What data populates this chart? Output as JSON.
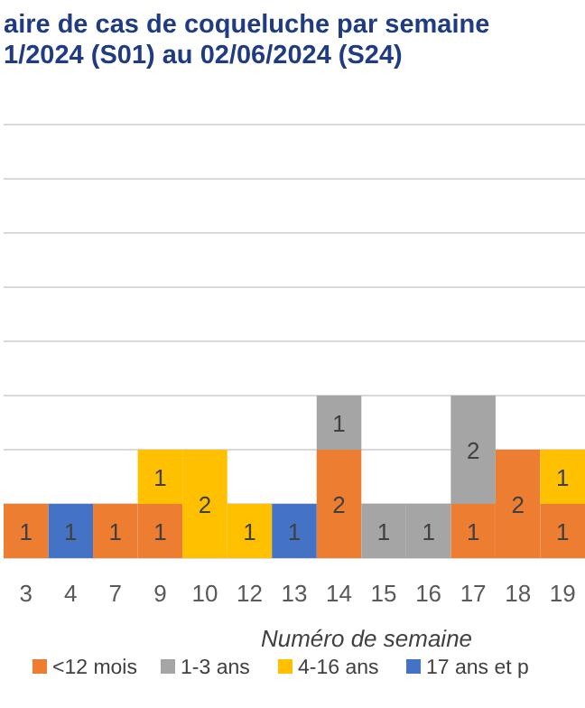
{
  "chart_data": {
    "type": "bar",
    "title": "aire de cas de coqueluche par semaine\n1/2024 (S01) au 02/06/2024 (S24)",
    "xlabel": "Numéro de semaine",
    "categories": [
      "3",
      "4",
      "7",
      "9",
      "10",
      "12",
      "13",
      "14",
      "15",
      "16",
      "17",
      "18",
      "19"
    ],
    "stacked": true,
    "series": [
      {
        "name": "<12 mois",
        "color": "#ed7d31",
        "values": [
          1,
          null,
          1,
          1,
          null,
          null,
          null,
          2,
          null,
          null,
          1,
          2,
          1
        ]
      },
      {
        "name": "1-3 ans",
        "color": "#a5a5a5",
        "values": [
          null,
          null,
          null,
          null,
          null,
          null,
          null,
          1,
          1,
          1,
          2,
          null,
          null
        ]
      },
      {
        "name": "4-16 ans",
        "color": "#ffc000",
        "values": [
          null,
          null,
          null,
          1,
          2,
          1,
          null,
          null,
          null,
          null,
          null,
          null,
          1
        ]
      },
      {
        "name": "17 ans et p",
        "color": "#4472c4",
        "values": [
          null,
          1,
          null,
          null,
          null,
          null,
          1,
          null,
          null,
          null,
          null,
          null,
          null
        ]
      }
    ],
    "ylim": [
      0,
      8
    ],
    "yticks": [
      {
        "value": 0,
        "label": null
      },
      {
        "value": 1,
        "label": null
      },
      {
        "value": 2,
        "label": null
      },
      {
        "value": 3,
        "label": null
      },
      {
        "value": 4,
        "label": null
      },
      {
        "value": 5,
        "label": null
      },
      {
        "value": 6,
        "label": null
      },
      {
        "value": 7,
        "label": null
      },
      {
        "value": 8,
        "label": null
      }
    ],
    "tick_labels": "x",
    "grid": "y",
    "data_labels": true,
    "legend": "bottom"
  }
}
